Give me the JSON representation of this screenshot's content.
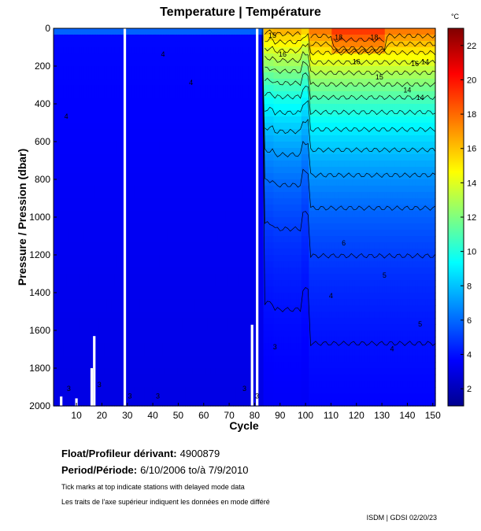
{
  "title": "Temperature | Température",
  "chart_data": {
    "type": "heatmap",
    "title": "Temperature | Température",
    "xlabel": "Cycle",
    "ylabel": "Pressure / Pression (dbar)",
    "xlim": [
      1,
      151
    ],
    "ylim": [
      2000,
      0
    ],
    "x_ticks": [
      10,
      20,
      30,
      40,
      50,
      60,
      70,
      80,
      90,
      100,
      110,
      120,
      130,
      140,
      150
    ],
    "y_ticks": [
      0,
      200,
      400,
      600,
      800,
      1000,
      1200,
      1400,
      1600,
      1800,
      2000
    ],
    "colorbar": {
      "unit": "°C",
      "range": [
        1,
        23
      ],
      "ticks": [
        2,
        4,
        6,
        8,
        10,
        12,
        14,
        16,
        18,
        20,
        22
      ]
    },
    "contour_labels": [
      {
        "cycle": 87,
        "pressure": 50,
        "text": "15"
      },
      {
        "cycle": 91,
        "pressure": 150,
        "text": "16"
      },
      {
        "cycle": 113,
        "pressure": 60,
        "text": "18"
      },
      {
        "cycle": 127,
        "pressure": 60,
        "text": "18"
      },
      {
        "cycle": 120,
        "pressure": 190,
        "text": "16"
      },
      {
        "cycle": 129,
        "pressure": 270,
        "text": "15"
      },
      {
        "cycle": 143,
        "pressure": 200,
        "text": "16"
      },
      {
        "cycle": 147,
        "pressure": 190,
        "text": "14"
      },
      {
        "cycle": 140,
        "pressure": 340,
        "text": "14"
      },
      {
        "cycle": 145,
        "pressure": 380,
        "text": "14"
      },
      {
        "cycle": 115,
        "pressure": 1150,
        "text": "6"
      },
      {
        "cycle": 131,
        "pressure": 1320,
        "text": "5"
      },
      {
        "cycle": 110,
        "pressure": 1430,
        "text": "4"
      },
      {
        "cycle": 134,
        "pressure": 1710,
        "text": "4"
      },
      {
        "cycle": 145,
        "pressure": 1580,
        "text": "5"
      },
      {
        "cycle": 88,
        "pressure": 1700,
        "text": "3"
      },
      {
        "cycle": 6,
        "pressure": 480,
        "text": "4"
      },
      {
        "cycle": 55,
        "pressure": 300,
        "text": "4"
      },
      {
        "cycle": 44,
        "pressure": 150,
        "text": "4"
      },
      {
        "cycle": 7,
        "pressure": 1920,
        "text": "3"
      },
      {
        "cycle": 19,
        "pressure": 1900,
        "text": "3"
      },
      {
        "cycle": 31,
        "pressure": 1960,
        "text": "3"
      },
      {
        "cycle": 42,
        "pressure": 1960,
        "text": "3"
      },
      {
        "cycle": 76,
        "pressure": 1920,
        "text": "3"
      },
      {
        "cycle": 81,
        "pressure": 1960,
        "text": "3"
      }
    ]
  },
  "info": {
    "float_label": "Float/Profileur dérivant:",
    "float_id": "4900879",
    "period_label": "Period/Période:",
    "period_value": "6/10/2006  to/à  7/9/2010",
    "note_en": "Tick marks at top indicate stations with delayed mode data",
    "note_fr": "Les traits de l'axe supérieur indiquent les données en mode différé",
    "credit": "ISDM | GDSI  02/20/23"
  }
}
